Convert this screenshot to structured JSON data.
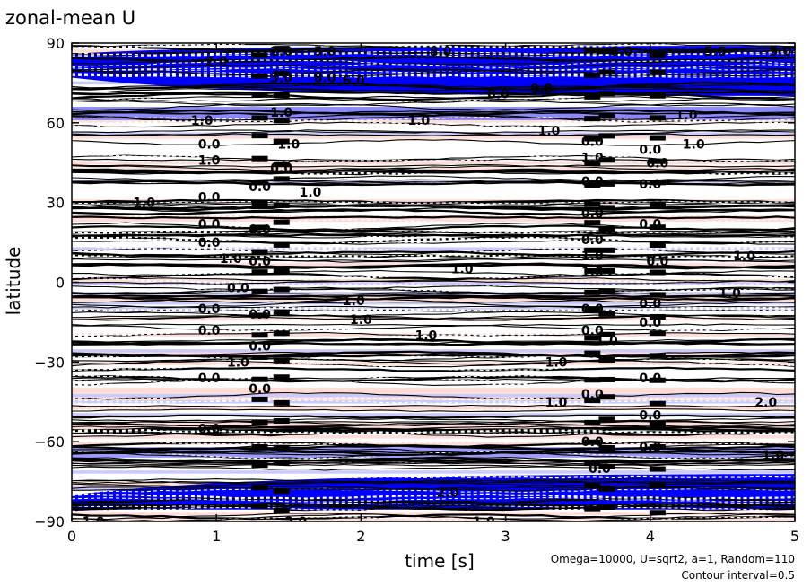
{
  "chart_data": {
    "type": "heatmap",
    "title": "zonal-mean U",
    "xlabel": "time [s]",
    "ylabel": "latitude",
    "xlim": [
      0,
      5
    ],
    "ylim": [
      -90,
      90
    ],
    "x_ticks": [
      "0",
      "1",
      "2",
      "3",
      "4",
      "5"
    ],
    "y_ticks": [
      "90",
      "60",
      "30",
      "0",
      "−30",
      "−60",
      "−90"
    ],
    "notes": [
      "Omega=10000, U=sqrt2, a=1, Random=110",
      "Contour interval=0.5"
    ],
    "colors": {
      "strong_negative": "#0000ff",
      "negative": "#b8b8ff",
      "positive": "#ffd0c8",
      "contour": "#000000"
    },
    "contour_labels": [
      {
        "text": "2.0",
        "t": 1.45,
        "lat": 87
      },
      {
        "text": "5.0",
        "t": 1.75,
        "lat": 87
      },
      {
        "text": "8.0",
        "t": 2.55,
        "lat": 87
      },
      {
        "text": "8.0",
        "t": 3.8,
        "lat": 87
      },
      {
        "text": "5.0",
        "t": 4.45,
        "lat": 87
      },
      {
        "text": "5.0",
        "t": 4.9,
        "lat": 87
      },
      {
        "text": "2.0",
        "t": 1.0,
        "lat": 83
      },
      {
        "text": "3.0",
        "t": 1.45,
        "lat": 77
      },
      {
        "text": "8.0",
        "t": 1.75,
        "lat": 77
      },
      {
        "text": "6.0",
        "t": 1.95,
        "lat": 76
      },
      {
        "text": "9.0",
        "t": 3.25,
        "lat": 73
      },
      {
        "text": "0.0",
        "t": 2.95,
        "lat": 71
      },
      {
        "text": "1.0",
        "t": 0.9,
        "lat": 61
      },
      {
        "text": "1.0",
        "t": 1.45,
        "lat": 64
      },
      {
        "text": "1.0",
        "t": 2.4,
        "lat": 61
      },
      {
        "text": "1.0",
        "t": 3.3,
        "lat": 57
      },
      {
        "text": "1.0",
        "t": 4.25,
        "lat": 63
      },
      {
        "text": "1.0",
        "t": 4.3,
        "lat": 52
      },
      {
        "text": "0.0",
        "t": 0.95,
        "lat": 52
      },
      {
        "text": "1.0",
        "t": 0.95,
        "lat": 46
      },
      {
        "text": "1.0",
        "t": 1.5,
        "lat": 52
      },
      {
        "text": "0.0",
        "t": 1.45,
        "lat": 43
      },
      {
        "text": "0.0",
        "t": 1.3,
        "lat": 36
      },
      {
        "text": "1.0",
        "t": 1.65,
        "lat": 34
      },
      {
        "text": "0.0",
        "t": 0.95,
        "lat": 32
      },
      {
        "text": "1.0",
        "t": 0.5,
        "lat": 30
      },
      {
        "text": "0.0",
        "t": 0.95,
        "lat": 22
      },
      {
        "text": "0.0",
        "t": 1.3,
        "lat": 20
      },
      {
        "text": "0.0",
        "t": 0.95,
        "lat": 15
      },
      {
        "text": "1.0",
        "t": 1.1,
        "lat": 9
      },
      {
        "text": "0.0",
        "t": 1.3,
        "lat": 8
      },
      {
        "text": "1.0",
        "t": 2.7,
        "lat": 5
      },
      {
        "text": "0.0",
        "t": 1.15,
        "lat": -2
      },
      {
        "text": "1.0",
        "t": 1.95,
        "lat": -7
      },
      {
        "text": "0.0",
        "t": 0.95,
        "lat": -10
      },
      {
        "text": "1.0",
        "t": 2.0,
        "lat": -14
      },
      {
        "text": "0.0",
        "t": 1.3,
        "lat": -12
      },
      {
        "text": "0.0",
        "t": 0.95,
        "lat": -18
      },
      {
        "text": "1.0",
        "t": 2.45,
        "lat": -20
      },
      {
        "text": "0.0",
        "t": 1.3,
        "lat": -24
      },
      {
        "text": "1.0",
        "t": 1.15,
        "lat": -30
      },
      {
        "text": "0.0",
        "t": 0.95,
        "lat": -36
      },
      {
        "text": "0.0",
        "t": 1.3,
        "lat": -40
      },
      {
        "text": "1.0",
        "t": 3.35,
        "lat": -45
      },
      {
        "text": "0.0",
        "t": 0.95,
        "lat": -55
      },
      {
        "text": "2.0",
        "t": 2.6,
        "lat": -79
      },
      {
        "text": "1.0",
        "t": 0.15,
        "lat": -90
      },
      {
        "text": "2.0",
        "t": 1.55,
        "lat": -90
      },
      {
        "text": "1.0",
        "t": 2.85,
        "lat": -90
      },
      {
        "text": "1.0",
        "t": 4.85,
        "lat": -65
      },
      {
        "text": "0.0",
        "t": 3.6,
        "lat": 53
      },
      {
        "text": "1.0",
        "t": 3.6,
        "lat": 47
      },
      {
        "text": "0.0",
        "t": 4.0,
        "lat": 50
      },
      {
        "text": "0.0",
        "t": 4.05,
        "lat": 45
      },
      {
        "text": "0.0",
        "t": 3.6,
        "lat": 38
      },
      {
        "text": "0.0",
        "t": 4.0,
        "lat": 37
      },
      {
        "text": "0.0",
        "t": 3.6,
        "lat": 26
      },
      {
        "text": "0.0",
        "t": 4.0,
        "lat": 22
      },
      {
        "text": "0.0",
        "t": 3.6,
        "lat": 16
      },
      {
        "text": "1.0",
        "t": 3.6,
        "lat": 10
      },
      {
        "text": "0.0",
        "t": 4.05,
        "lat": 8
      },
      {
        "text": "1.0",
        "t": 3.6,
        "lat": 4
      },
      {
        "text": "1.0",
        "t": 4.55,
        "lat": -4
      },
      {
        "text": "1.0",
        "t": 4.65,
        "lat": 10
      },
      {
        "text": "0.0",
        "t": 4.0,
        "lat": -8
      },
      {
        "text": "0.0",
        "t": 3.6,
        "lat": -10
      },
      {
        "text": "0.0",
        "t": 4.0,
        "lat": -15
      },
      {
        "text": "0.0",
        "t": 3.6,
        "lat": -18
      },
      {
        "text": "1.0",
        "t": 3.7,
        "lat": -22
      },
      {
        "text": "1.0",
        "t": 3.35,
        "lat": -30
      },
      {
        "text": "0.0",
        "t": 4.0,
        "lat": -36
      },
      {
        "text": "0.0",
        "t": 3.6,
        "lat": -42
      },
      {
        "text": "0.0",
        "t": 4.0,
        "lat": -50
      },
      {
        "text": "0.0",
        "t": 3.6,
        "lat": -60
      },
      {
        "text": "0.0",
        "t": 4.0,
        "lat": -62
      },
      {
        "text": "0.0",
        "t": 3.65,
        "lat": -70
      },
      {
        "text": "2.0",
        "t": 4.8,
        "lat": -45
      }
    ]
  }
}
